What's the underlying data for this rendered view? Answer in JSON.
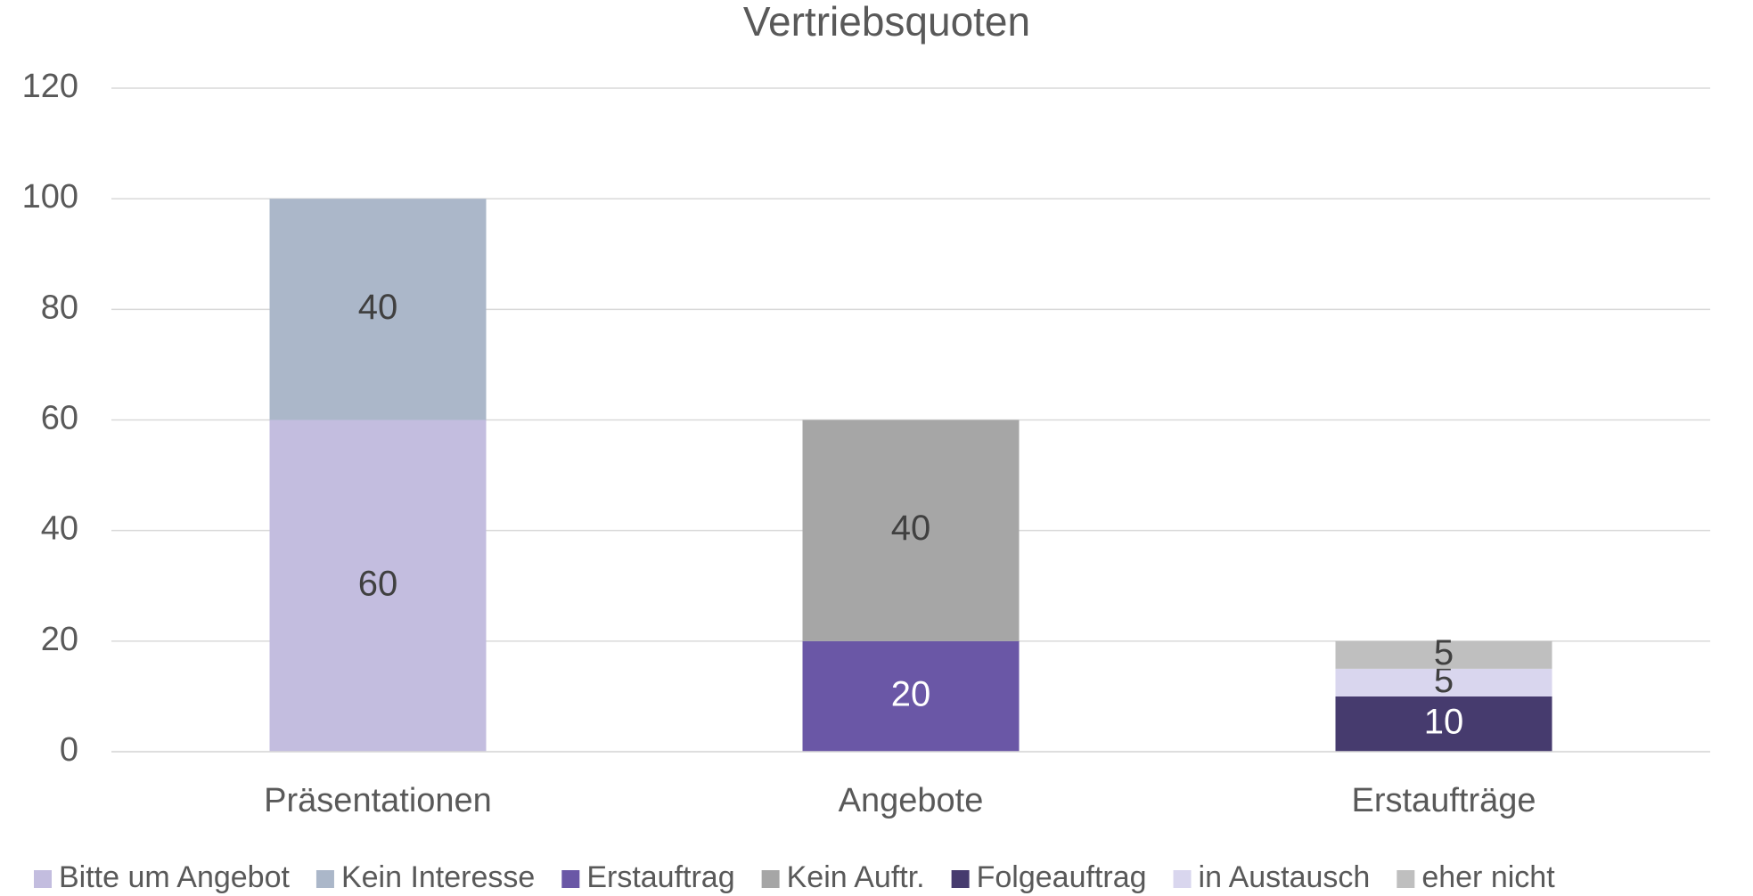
{
  "chart_data": {
    "type": "stacked_bar",
    "title": "Vertriebsquoten",
    "categories": [
      "Präsentationen",
      "Angebote",
      "Erstaufträge"
    ],
    "series": [
      {
        "name": "Bitte um Angebot",
        "color": "#c3bddf",
        "values": [
          60,
          null,
          null
        ]
      },
      {
        "name": "Kein Interesse",
        "color": "#abb7c9",
        "values": [
          40,
          null,
          null
        ]
      },
      {
        "name": "Erstauftrag",
        "color": "#6a57a6",
        "values": [
          null,
          20,
          null
        ]
      },
      {
        "name": "Kein Auftr.",
        "color": "#a6a6a6",
        "values": [
          null,
          40,
          null
        ]
      },
      {
        "name": "Folgeauftrag",
        "color": "#463b6e",
        "values": [
          null,
          null,
          10
        ]
      },
      {
        "name": "in Austausch",
        "color": "#d9d6ee",
        "values": [
          null,
          null,
          5
        ]
      },
      {
        "name": "eher nicht",
        "color": "#bfbfbf",
        "values": [
          null,
          null,
          5
        ]
      }
    ],
    "ylim": [
      0,
      120
    ],
    "yticks": [
      0,
      20,
      40,
      60,
      80,
      100,
      120
    ],
    "grid": true,
    "legend": "bottom"
  }
}
